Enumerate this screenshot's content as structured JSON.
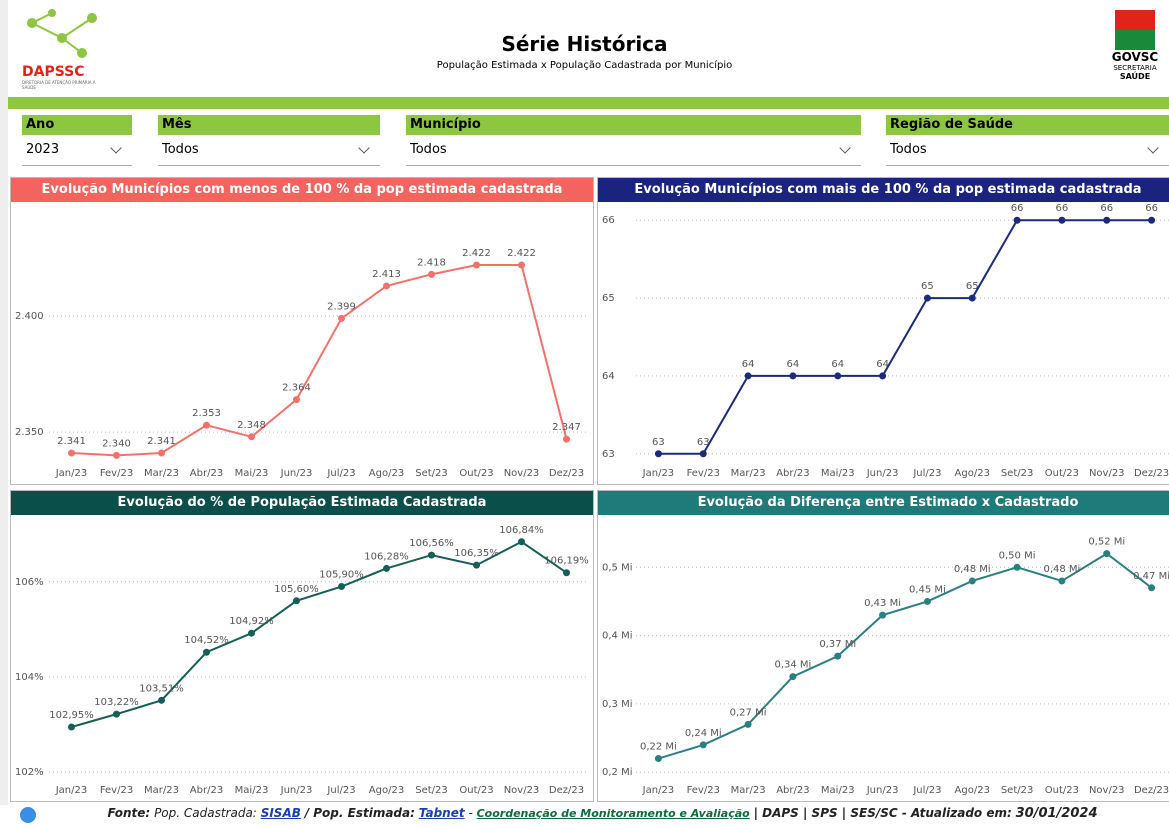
{
  "header": {
    "title": "Série Histórica",
    "subtitle": "População Estimada x População Cadastrada por Município",
    "logo_left": "DAPSSC",
    "logo_left_caption": "DIRETORIA DE ATENÇÃO PRIMÁRIA À SAÚDE",
    "logo_right": "GOVSC",
    "logo_right_caption1": "SECRETARIA",
    "logo_right_caption2": "SAÚDE"
  },
  "filters": [
    {
      "label": "Ano",
      "value": "2023"
    },
    {
      "label": "Mês",
      "value": "Todos"
    },
    {
      "label": "Município",
      "value": "Todos"
    },
    {
      "label": "Região de Saúde",
      "value": "Todos"
    }
  ],
  "chart_data": [
    {
      "type": "line",
      "title": "Evolução Municípios com menos de 100 % da pop estimada cadastrada",
      "title_color": "#f4645f",
      "color": "#f4716b",
      "categories": [
        "Jan/23",
        "Fev/23",
        "Mar/23",
        "Abr/23",
        "Mai/23",
        "Jun/23",
        "Jul/23",
        "Ago/23",
        "Set/23",
        "Out/23",
        "Nov/23",
        "Dez/23"
      ],
      "values": [
        2341,
        2340,
        2341,
        2353,
        2348,
        2364,
        2399,
        2413,
        2418,
        2422,
        2422,
        2347
      ],
      "value_labels": [
        "2.341",
        "2.340",
        "2.341",
        "2.353",
        "2.348",
        "2.364",
        "2.399",
        "2.413",
        "2.418",
        "2.422",
        "2.422",
        "2.347"
      ],
      "ylim": [
        2338,
        2444
      ],
      "yticks": [
        {
          "value": 2350,
          "label": "2.350"
        },
        {
          "value": 2400,
          "label": "2.400"
        }
      ],
      "grid": true
    },
    {
      "type": "line",
      "title": "Evolução Municípios com mais de 100 % da pop estimada cadastrada",
      "title_color": "#1a237e",
      "color": "#1c2a7a",
      "categories": [
        "Jan/23",
        "Fev/23",
        "Mar/23",
        "Abr/23",
        "Mai/23",
        "Jun/23",
        "Jul/23",
        "Ago/23",
        "Set/23",
        "Out/23",
        "Nov/23",
        "Dez/23"
      ],
      "values": [
        63,
        63,
        64,
        64,
        64,
        64,
        65,
        65,
        66,
        66,
        66,
        66
      ],
      "ylim": [
        62.92,
        66.08
      ],
      "yticks": [
        63,
        64,
        65,
        66
      ],
      "grid": true
    },
    {
      "type": "line",
      "title": "Evolução do % de População Estimada Cadastrada",
      "title_color": "#0a4f4a",
      "color": "#155f58",
      "categories": [
        "Jan/23",
        "Fev/23",
        "Mar/23",
        "Abr/23",
        "Mai/23",
        "Jun/23",
        "Jul/23",
        "Ago/23",
        "Set/23",
        "Out/23",
        "Nov/23",
        "Dez/23"
      ],
      "values": [
        102.95,
        103.22,
        103.51,
        104.52,
        104.92,
        105.6,
        105.9,
        106.28,
        106.56,
        106.35,
        106.84,
        106.19
      ],
      "value_labels": [
        "102,95%",
        "103,22%",
        "103,51%",
        "104,52%",
        "104,92%",
        "105,60%",
        "105,90%",
        "106,28%",
        "106,56%",
        "106,35%",
        "106,84%",
        "106,19%"
      ],
      "ylim": [
        101.9,
        107.15
      ],
      "yticks": [
        {
          "value": 102,
          "label": "102%"
        },
        {
          "value": 104,
          "label": "104%"
        },
        {
          "value": 106,
          "label": "106%"
        }
      ],
      "grid": true
    },
    {
      "type": "line",
      "title": "Evolução da Diferença entre Estimado x Cadastrado",
      "title_color": "#1f7a7a",
      "color": "#2a8080",
      "categories": [
        "Jan/23",
        "Fev/23",
        "Mar/23",
        "Abr/23",
        "Mai/23",
        "Jun/23",
        "Jul/23",
        "Ago/23",
        "Set/23",
        "Out/23",
        "Nov/23",
        "Dez/23"
      ],
      "values": [
        0.22,
        0.24,
        0.27,
        0.34,
        0.37,
        0.43,
        0.45,
        0.48,
        0.5,
        0.48,
        0.52,
        0.47
      ],
      "value_labels": [
        "0,22 Mi",
        "0,24 Mi",
        "0,27 Mi",
        "0,34 Mi",
        "0,37 Mi",
        "0,43 Mi",
        "0,45 Mi",
        "0,48 Mi",
        "0,50 Mi",
        "0,48 Mi",
        "0,52 Mi",
        "0,47 Mi"
      ],
      "ylim": [
        0.193,
        0.559
      ],
      "yticks": [
        {
          "value": 0.2,
          "label": "0,2 Mi"
        },
        {
          "value": 0.3,
          "label": "0,3 Mi"
        },
        {
          "value": 0.4,
          "label": "0,4 Mi"
        },
        {
          "value": 0.5,
          "label": "0,5 Mi"
        }
      ],
      "grid": true
    }
  ],
  "footer": {
    "source_label": "Fonte:",
    "cad_label": "Pop. Cadastrada:",
    "cad_link": "SISAB",
    "est_label": "/ Pop. Estimada:",
    "est_link": "Tabnet",
    "sep": "-",
    "coord_link": "Coordenação de Monitoramento e Avaliação",
    "rest": "| DAPS | SPS | SES/SC - Atualizado em:",
    "date": "30/01/2024"
  }
}
